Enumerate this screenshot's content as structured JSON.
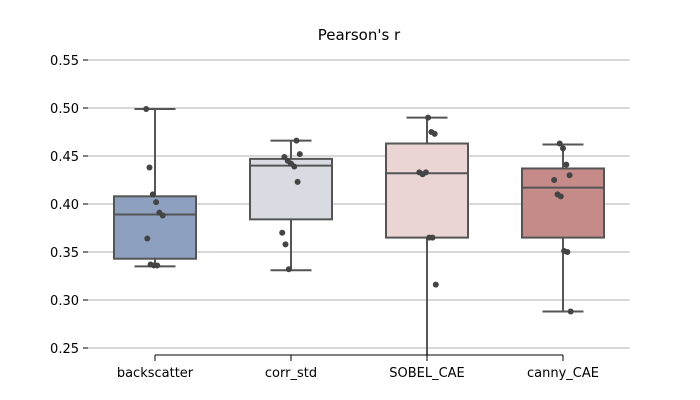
{
  "chart_data": {
    "type": "box",
    "title": "Pearson's r",
    "xlabel": "",
    "ylabel": "",
    "ylim": [
      0.24,
      0.555
    ],
    "yticks": [
      "0.25",
      "0.30",
      "0.35",
      "0.40",
      "0.45",
      "0.50",
      "0.55"
    ],
    "grid": true,
    "categories": [
      "backscatter",
      "corr_std",
      "SOBEL_CAE",
      "canny_CAE"
    ],
    "boxes": [
      {
        "name": "backscatter",
        "color": "#8da0bf",
        "q1": 0.343,
        "median": 0.389,
        "q3": 0.408,
        "whisker_low": 0.335,
        "whisker_high": 0.499,
        "points": [
          0.499,
          0.438,
          0.41,
          0.402,
          0.391,
          0.388,
          0.364,
          0.337,
          0.336,
          0.336
        ]
      },
      {
        "name": "corr_std",
        "color": "#d8dce2",
        "q1": 0.384,
        "median": 0.44,
        "q3": 0.447,
        "whisker_low": 0.331,
        "whisker_high": 0.466,
        "points": [
          0.466,
          0.452,
          0.449,
          0.445,
          0.442,
          0.439,
          0.423,
          0.37,
          0.358,
          0.332
        ]
      },
      {
        "name": "SOBEL_CAE",
        "color": "#ebd4d4",
        "q1": 0.365,
        "median": 0.432,
        "q3": 0.463,
        "whisker_low": 0.24,
        "whisker_high": 0.49,
        "points": [
          0.49,
          0.475,
          0.473,
          0.433,
          0.431,
          0.433,
          0.365,
          0.365,
          0.316
        ]
      },
      {
        "name": "canny_CAE",
        "color": "#c48b89",
        "q1": 0.365,
        "median": 0.417,
        "q3": 0.437,
        "whisker_low": 0.288,
        "whisker_high": 0.462,
        "points": [
          0.463,
          0.458,
          0.441,
          0.43,
          0.425,
          0.41,
          0.408,
          0.351,
          0.35,
          0.288
        ]
      }
    ]
  }
}
